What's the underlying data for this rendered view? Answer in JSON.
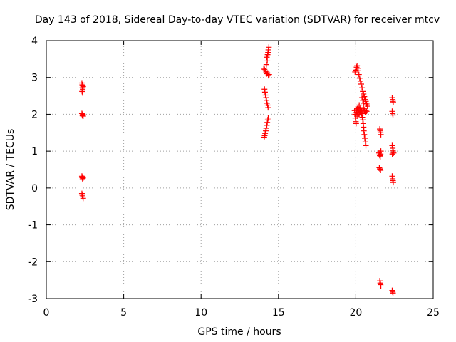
{
  "chart_data": {
    "type": "scatter",
    "title": "Day 143 of 2018, Sidereal Day-to-day VTEC variation (SDTVAR) for receiver mtcv",
    "xlabel": "GPS time / hours",
    "ylabel": "SDTVAR / TECUs",
    "xlim": [
      0,
      25
    ],
    "ylim": [
      -3,
      4
    ],
    "x_ticks": [
      0,
      5,
      10,
      15,
      20,
      25
    ],
    "x_tick_labels": [
      "0",
      "5",
      "10",
      "15",
      "20",
      "25"
    ],
    "y_ticks": [
      -3,
      -2,
      -1,
      0,
      1,
      2,
      3,
      4
    ],
    "y_tick_labels": [
      "-3",
      "-2",
      "-1",
      "0",
      "1",
      "2",
      "3",
      "4"
    ],
    "grid": true,
    "marker": "+",
    "color": "#ff0000",
    "series": [
      {
        "name": "mtcv",
        "points": [
          [
            2.3,
            2.85
          ],
          [
            2.32,
            2.8
          ],
          [
            2.33,
            2.72
          ],
          [
            2.35,
            2.68
          ],
          [
            2.31,
            2.62
          ],
          [
            2.34,
            2.58
          ],
          [
            2.36,
            2.78
          ],
          [
            2.38,
            2.75
          ],
          [
            2.3,
            2.02
          ],
          [
            2.32,
            1.98
          ],
          [
            2.34,
            1.96
          ],
          [
            2.36,
            2.0
          ],
          [
            2.38,
            1.95
          ],
          [
            2.3,
            0.32
          ],
          [
            2.32,
            0.28
          ],
          [
            2.34,
            0.25
          ],
          [
            2.36,
            0.3
          ],
          [
            2.38,
            0.27
          ],
          [
            2.3,
            -0.15
          ],
          [
            2.33,
            -0.2
          ],
          [
            2.35,
            -0.24
          ],
          [
            2.38,
            -0.28
          ],
          [
            14.05,
            3.25
          ],
          [
            14.1,
            3.22
          ],
          [
            14.15,
            3.18
          ],
          [
            14.2,
            3.15
          ],
          [
            14.25,
            3.1
          ],
          [
            14.3,
            3.12
          ],
          [
            14.35,
            3.05
          ],
          [
            14.4,
            3.08
          ],
          [
            14.25,
            3.55
          ],
          [
            14.3,
            3.62
          ],
          [
            14.33,
            3.68
          ],
          [
            14.35,
            3.75
          ],
          [
            14.38,
            3.82
          ],
          [
            14.28,
            3.45
          ],
          [
            14.22,
            3.35
          ],
          [
            14.1,
            2.68
          ],
          [
            14.13,
            2.6
          ],
          [
            14.16,
            2.52
          ],
          [
            14.2,
            2.45
          ],
          [
            14.23,
            2.38
          ],
          [
            14.26,
            2.3
          ],
          [
            14.3,
            2.25
          ],
          [
            14.33,
            2.18
          ],
          [
            14.08,
            1.38
          ],
          [
            14.11,
            1.42
          ],
          [
            14.14,
            1.48
          ],
          [
            14.18,
            1.55
          ],
          [
            14.21,
            1.62
          ],
          [
            14.25,
            1.7
          ],
          [
            14.28,
            1.78
          ],
          [
            14.31,
            1.85
          ],
          [
            14.34,
            1.9
          ],
          [
            19.95,
            3.15
          ],
          [
            20.0,
            3.2
          ],
          [
            20.05,
            3.28
          ],
          [
            20.08,
            3.32
          ],
          [
            20.12,
            3.25
          ],
          [
            20.15,
            3.18
          ],
          [
            20.2,
            3.08
          ],
          [
            20.25,
            2.98
          ],
          [
            20.3,
            2.9
          ],
          [
            20.35,
            2.82
          ],
          [
            20.4,
            2.72
          ],
          [
            20.45,
            2.62
          ],
          [
            20.5,
            2.55
          ],
          [
            20.55,
            2.48
          ],
          [
            20.6,
            2.4
          ],
          [
            20.65,
            2.35
          ],
          [
            20.7,
            2.28
          ],
          [
            20.75,
            2.22
          ],
          [
            20.4,
            2.45
          ],
          [
            20.45,
            2.38
          ],
          [
            20.5,
            2.3
          ],
          [
            19.92,
            2.1
          ],
          [
            19.95,
            2.0
          ],
          [
            19.97,
            1.9
          ],
          [
            20.0,
            1.8
          ],
          [
            20.02,
            1.75
          ],
          [
            20.04,
            2.05
          ],
          [
            20.06,
            2.12
          ],
          [
            20.08,
            1.95
          ],
          [
            20.1,
            2.15
          ],
          [
            20.12,
            2.05
          ],
          [
            20.15,
            2.2
          ],
          [
            20.18,
            2.1
          ],
          [
            20.2,
            2.0
          ],
          [
            20.22,
            2.25
          ],
          [
            20.25,
            2.12
          ],
          [
            20.28,
            2.05
          ],
          [
            20.3,
            2.18
          ],
          [
            20.33,
            2.08
          ],
          [
            20.35,
            1.98
          ],
          [
            20.38,
            2.1
          ],
          [
            20.4,
            2.02
          ],
          [
            20.42,
            1.92
          ],
          [
            20.45,
            1.85
          ],
          [
            20.48,
            1.75
          ],
          [
            20.5,
            1.65
          ],
          [
            20.52,
            1.55
          ],
          [
            20.55,
            1.45
          ],
          [
            20.58,
            1.35
          ],
          [
            20.62,
            1.25
          ],
          [
            20.65,
            1.15
          ],
          [
            20.6,
            2.05
          ],
          [
            20.65,
            2.1
          ],
          [
            20.7,
            2.08
          ],
          [
            20.55,
            2.12
          ],
          [
            20.5,
            2.15
          ],
          [
            21.55,
            1.6
          ],
          [
            21.58,
            1.55
          ],
          [
            21.6,
            1.5
          ],
          [
            21.62,
            1.45
          ],
          [
            21.5,
            0.95
          ],
          [
            21.53,
            0.9
          ],
          [
            21.55,
            0.88
          ],
          [
            21.58,
            0.85
          ],
          [
            21.6,
            0.92
          ],
          [
            21.62,
            1.0
          ],
          [
            21.52,
            0.55
          ],
          [
            21.55,
            0.52
          ],
          [
            21.58,
            0.5
          ],
          [
            21.6,
            0.48
          ],
          [
            21.55,
            -2.52
          ],
          [
            21.58,
            -2.58
          ],
          [
            21.6,
            -2.62
          ],
          [
            21.62,
            -2.66
          ],
          [
            22.35,
            2.45
          ],
          [
            22.38,
            2.4
          ],
          [
            22.4,
            2.35
          ],
          [
            22.42,
            2.32
          ],
          [
            22.35,
            2.08
          ],
          [
            22.38,
            2.02
          ],
          [
            22.4,
            1.98
          ],
          [
            22.35,
            1.15
          ],
          [
            22.38,
            1.08
          ],
          [
            22.4,
            1.02
          ],
          [
            22.42,
            0.98
          ],
          [
            22.44,
            0.95
          ],
          [
            22.36,
            0.92
          ],
          [
            22.35,
            0.32
          ],
          [
            22.38,
            0.25
          ],
          [
            22.4,
            0.2
          ],
          [
            22.42,
            0.15
          ],
          [
            22.35,
            -2.78
          ],
          [
            22.38,
            -2.82
          ],
          [
            22.4,
            -2.85
          ]
        ]
      }
    ]
  }
}
